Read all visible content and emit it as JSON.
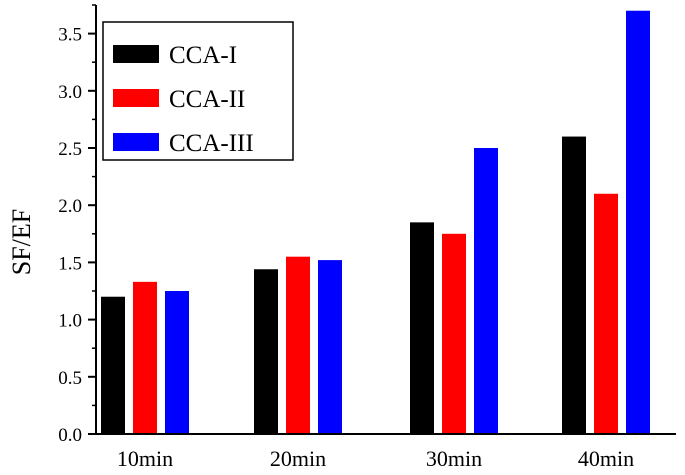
{
  "chart_data": {
    "type": "bar",
    "title": "",
    "xlabel": "",
    "ylabel": "SF/EF",
    "ylim": [
      0,
      3.75
    ],
    "yticks": [
      "0.0",
      "0.5",
      "1.0",
      "1.5",
      "2.0",
      "2.5",
      "3.0",
      "3.5"
    ],
    "categories": [
      "10min",
      "20min",
      "30min",
      "40min"
    ],
    "series": [
      {
        "name": "CCA-I",
        "color": "#000000",
        "values": [
          1.2,
          1.44,
          1.85,
          2.6
        ]
      },
      {
        "name": "CCA-II",
        "color": "#ff0000",
        "values": [
          1.33,
          1.55,
          1.75,
          2.1
        ]
      },
      {
        "name": "CCA-III",
        "color": "#0000ff",
        "values": [
          1.25,
          1.52,
          2.5,
          3.7
        ]
      }
    ],
    "legend_position": "top-left",
    "grid": false
  }
}
